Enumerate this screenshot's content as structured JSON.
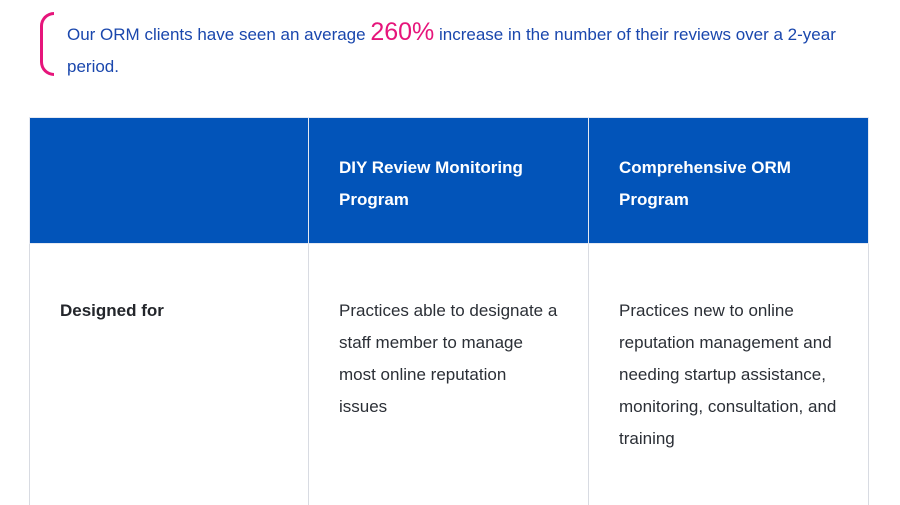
{
  "callout": {
    "text_before": "Our ORM clients have seen an average ",
    "highlight": "260%",
    "text_after": " increase in the number of their reviews over a 2-year period.",
    "accent_color": "#e6157b",
    "text_color": "#1a47ad"
  },
  "table": {
    "header_color": "#0254b9",
    "columns": [
      "",
      "DIY Review Monitoring Program",
      "Comprehensive ORM Program"
    ],
    "rows": [
      {
        "label": "Designed for",
        "cells": [
          "Practices able to designate a staff member to manage most online reputation issues",
          "Practices new to online reputation management and needing startup assistance, monitoring, consultation, and training"
        ]
      }
    ]
  }
}
